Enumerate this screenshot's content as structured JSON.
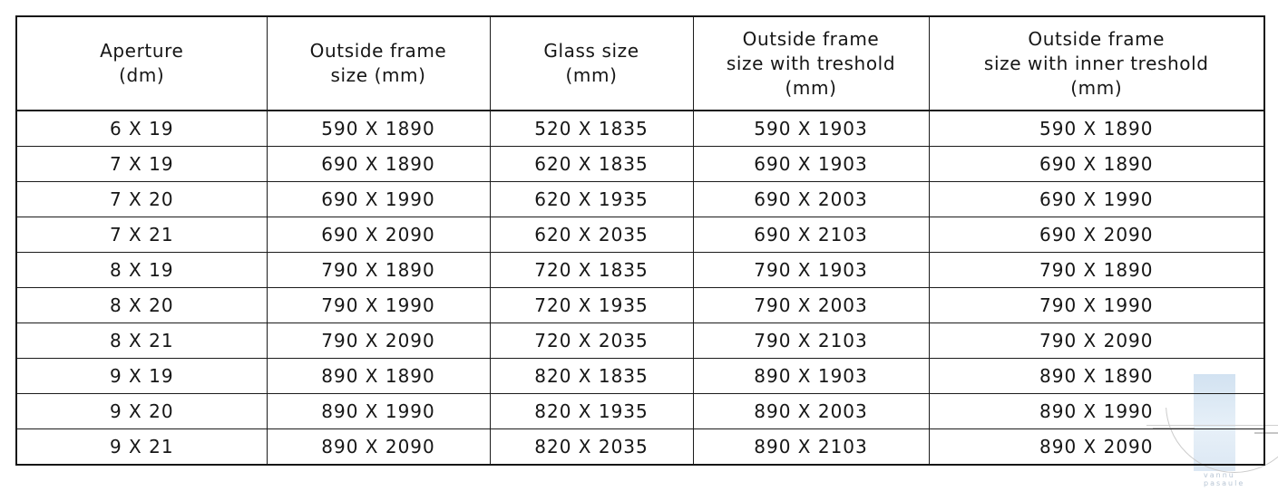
{
  "table": {
    "columns": [
      "Aperture\n(dm)",
      "Outside frame\nsize (mm)",
      "Glass size\n(mm)",
      "Outside frame\nsize with treshold\n(mm)",
      "Outside frame\nsize with inner treshold\n(mm)"
    ],
    "rows": [
      [
        "6 X 19",
        "590 X 1890",
        "520 X 1835",
        "590 X 1903",
        "590 X 1890"
      ],
      [
        "7 X 19",
        "690 X 1890",
        "620 X 1835",
        "690 X 1903",
        "690 X 1890"
      ],
      [
        "7 X 20",
        "690 X 1990",
        "620 X 1935",
        "690 X 2003",
        "690 X 1990"
      ],
      [
        "7 X 21",
        "690 X 2090",
        "620 X 2035",
        "690 X 2103",
        "690 X 2090"
      ],
      [
        "8 X 19",
        "790 X 1890",
        "720 X 1835",
        "790 X 1903",
        "790 X 1890"
      ],
      [
        "8 X 20",
        "790 X 1990",
        "720 X 1935",
        "790 X 2003",
        "790 X 1990"
      ],
      [
        "8 X 21",
        "790 X 2090",
        "720 X 2035",
        "790 X 2103",
        "790 X 2090"
      ],
      [
        "9 X 19",
        "890 X 1890",
        "820 X 1835",
        "890 X 1903",
        "890 X 1890"
      ],
      [
        "9 X 20",
        "890 X 1990",
        "820 X 1935",
        "890 X 2003",
        "890 X 1990"
      ],
      [
        "9 X 21",
        "890 X 2090",
        "820 X 2035",
        "890 X 2103",
        "890 X 2090"
      ]
    ],
    "border_color": "#1b1b1b",
    "text_color": "#161616"
  },
  "watermark": {
    "text": "vannu\npasaule",
    "bar_color_top": "#d2e2f1",
    "bar_color_bottom": "#dce8f4",
    "arc_color": "#cbcbcb",
    "text_color": "#b7c5d4"
  }
}
